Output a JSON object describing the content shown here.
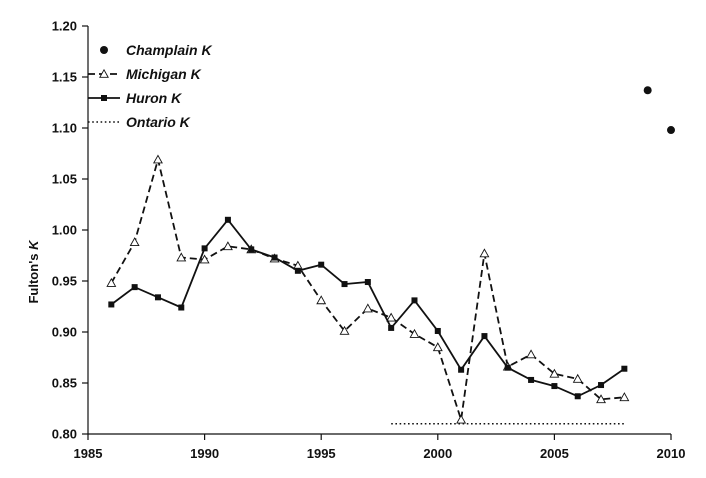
{
  "chart_data": {
    "type": "line",
    "title": "",
    "xlabel": "",
    "ylabel": "Fulton's K",
    "ylabel_parts": {
      "main": "Fulton's ",
      "italic": "K"
    },
    "xlim": [
      1985,
      2010
    ],
    "ylim": [
      0.8,
      1.2
    ],
    "x_ticks": [
      1985,
      1990,
      1995,
      2000,
      2005,
      2010
    ],
    "y_ticks": [
      0.8,
      0.85,
      0.9,
      0.95,
      1.0,
      1.05,
      1.1,
      1.15,
      1.2
    ],
    "x_tick_labels": [
      "1985",
      "1990",
      "1995",
      "2000",
      "2005",
      "2010"
    ],
    "y_tick_labels": [
      "0.80",
      "0.85",
      "0.90",
      "0.95",
      "1.00",
      "1.05",
      "1.10",
      "1.15",
      "1.20"
    ],
    "grid": false,
    "legend_position": "top-left",
    "series": [
      {
        "name": "Champlain K",
        "style": "markers-only",
        "marker": "filled-circle",
        "color": "#111111",
        "x": [
          2009,
          2010
        ],
        "y": [
          1.137,
          1.098
        ]
      },
      {
        "name": "Michigan K",
        "style": "dashed",
        "marker": "open-triangle",
        "color": "#111111",
        "x": [
          1986,
          1987,
          1988,
          1989,
          1990,
          1991,
          1992,
          1993,
          1994,
          1995,
          1996,
          1997,
          1998,
          1999,
          2000,
          2001,
          2002,
          2003,
          2004,
          2005,
          2006,
          2007,
          2008
        ],
        "y": [
          0.948,
          0.988,
          1.069,
          0.973,
          0.971,
          0.984,
          0.981,
          0.972,
          0.965,
          0.931,
          0.901,
          0.923,
          0.914,
          0.898,
          0.885,
          0.814,
          0.977,
          0.866,
          0.878,
          0.859,
          0.854,
          0.834,
          0.836
        ]
      },
      {
        "name": "Huron K",
        "style": "solid",
        "marker": "filled-square",
        "color": "#111111",
        "x": [
          1986,
          1987,
          1988,
          1989,
          1990,
          1991,
          1992,
          1993,
          1994,
          1995,
          1996,
          1997,
          1998,
          1999,
          2000,
          2001,
          2002,
          2003,
          2004,
          2005,
          2006,
          2007,
          2008
        ],
        "y": [
          0.927,
          0.944,
          0.934,
          0.924,
          0.982,
          1.01,
          0.981,
          0.973,
          0.96,
          0.966,
          0.947,
          0.949,
          0.904,
          0.931,
          0.901,
          0.863,
          0.896,
          0.865,
          0.853,
          0.847,
          0.837,
          0.848,
          0.864
        ]
      },
      {
        "name": "Ontario K",
        "style": "dotted",
        "marker": "none",
        "color": "#111111",
        "x": [
          1998,
          2008
        ],
        "y": [
          0.81,
          0.81
        ]
      }
    ],
    "legend_entries": [
      {
        "main": "Champlain ",
        "italic": "K"
      },
      {
        "main": "Michigan ",
        "italic": "K"
      },
      {
        "main": "Huron ",
        "italic": "K"
      },
      {
        "main": "Ontario ",
        "italic": "K"
      }
    ]
  }
}
